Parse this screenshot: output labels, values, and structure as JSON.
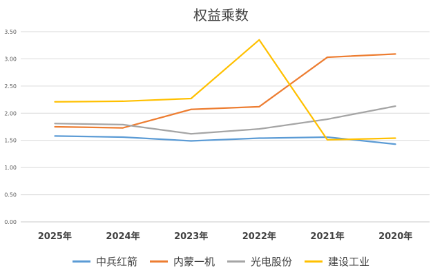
{
  "chart_data": {
    "type": "line",
    "title": "权益乘数",
    "xlabel": "",
    "ylabel": "",
    "categories": [
      "2025年",
      "2024年",
      "2023年",
      "2022年",
      "2021年",
      "2020年"
    ],
    "ylim": [
      0,
      3.5
    ],
    "yticks": [
      "0.00",
      "0.50",
      "1.00",
      "1.50",
      "2.00",
      "2.50",
      "3.00",
      "3.50"
    ],
    "grid": true,
    "legend_position": "bottom",
    "series": [
      {
        "name": "中兵红箭",
        "color": "#5B9BD5",
        "values": [
          1.58,
          1.56,
          1.49,
          1.54,
          1.56,
          1.43
        ]
      },
      {
        "name": "内蒙一机",
        "color": "#ED7D31",
        "values": [
          1.75,
          1.73,
          2.07,
          2.12,
          3.03,
          3.09
        ]
      },
      {
        "name": "光电股份",
        "color": "#A5A5A5",
        "values": [
          1.81,
          1.79,
          1.62,
          1.71,
          1.89,
          2.13
        ]
      },
      {
        "name": "建设工业",
        "color": "#FFC000",
        "values": [
          2.21,
          2.22,
          2.27,
          3.35,
          1.51,
          1.54
        ]
      }
    ]
  }
}
